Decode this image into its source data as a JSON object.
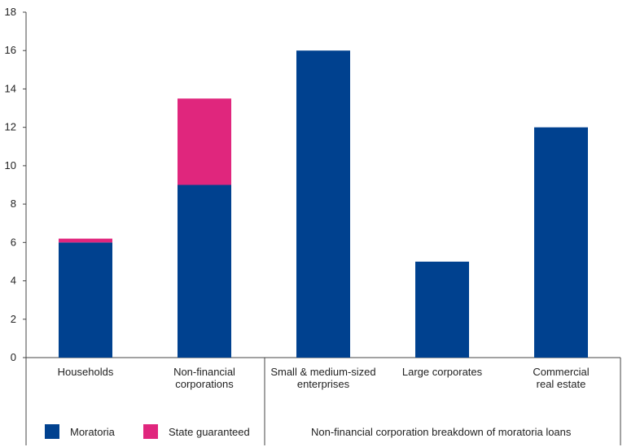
{
  "chart_data": {
    "type": "bar",
    "stacked": true,
    "categories": [
      [
        "Households"
      ],
      [
        "Non-financial",
        "corporations"
      ],
      [
        "Small & medium-sized",
        "enterprises"
      ],
      [
        "Large corporates"
      ],
      [
        "Commercial",
        "real estate"
      ]
    ],
    "series": [
      {
        "name": "Moratoria",
        "color": "#00418f",
        "values": [
          6,
          9,
          16,
          5,
          12
        ]
      },
      {
        "name": "State guaranteed",
        "color": "#e0267d",
        "values": [
          0.2,
          4.5,
          0,
          0,
          0
        ]
      }
    ],
    "ylim": [
      0,
      18
    ],
    "yticks": [
      0,
      2,
      4,
      6,
      8,
      10,
      12,
      14,
      16,
      18
    ],
    "grid": false,
    "legend_position": "bottom-left",
    "group_annotation": "Non-financial corporation breakdown of moratoria loans"
  }
}
